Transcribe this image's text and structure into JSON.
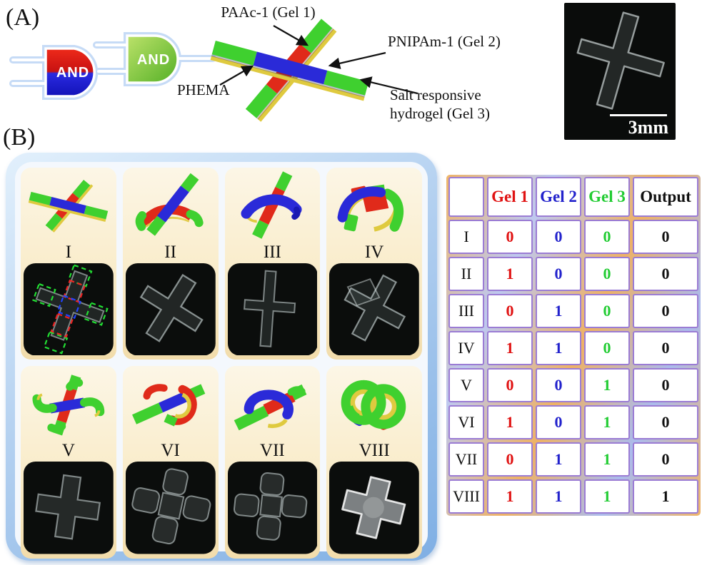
{
  "figure": {
    "panel_a_label": "(A)",
    "panel_b_label": "(B)"
  },
  "logic_gates": {
    "gate1_label": "AND",
    "gate2_label": "AND"
  },
  "schematic_labels": {
    "gel1": "PAAc-1 (Gel 1)",
    "gel2": "PNIPAm-1 (Gel 2)",
    "phema": "PHEMA",
    "gel3_line1": "Salt responsive",
    "gel3_line2": "hydrogel (Gel 3)"
  },
  "photo": {
    "scale_label": "3mm"
  },
  "panel_b": {
    "cells": [
      {
        "numeral": "I"
      },
      {
        "numeral": "II"
      },
      {
        "numeral": "III"
      },
      {
        "numeral": "IV"
      },
      {
        "numeral": "V"
      },
      {
        "numeral": "VI"
      },
      {
        "numeral": "VII"
      },
      {
        "numeral": "VIII"
      }
    ]
  },
  "truth_table": {
    "headers": [
      "",
      "Gel 1",
      "Gel 2",
      "Gel 3",
      "Output"
    ],
    "rows": [
      [
        "I",
        "0",
        "0",
        "0",
        "0"
      ],
      [
        "II",
        "1",
        "0",
        "0",
        "0"
      ],
      [
        "III",
        "0",
        "1",
        "0",
        "0"
      ],
      [
        "IV",
        "1",
        "1",
        "0",
        "0"
      ],
      [
        "V",
        "0",
        "0",
        "1",
        "0"
      ],
      [
        "VI",
        "1",
        "0",
        "1",
        "0"
      ],
      [
        "VII",
        "0",
        "1",
        "1",
        "0"
      ],
      [
        "VIII",
        "1",
        "1",
        "1",
        "1"
      ]
    ]
  },
  "colors": {
    "gel1_red": "#e02a1a",
    "gel2_blue": "#2a2ad8",
    "gel3_green": "#3fd02f",
    "phema_yellow": "#dfca3f",
    "table_border_purple": "#9b7cd4",
    "panel_blue": "#7fafe4",
    "header_red": "#e01212",
    "header_blue": "#2222cc",
    "header_green": "#22cc33"
  }
}
